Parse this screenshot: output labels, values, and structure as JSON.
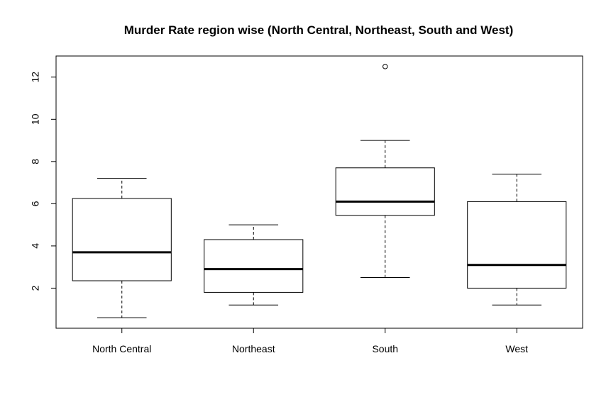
{
  "chart_data": {
    "type": "boxplot",
    "title": "Murder Rate region wise (North Central, Northeast, South and West)",
    "xlabel": "",
    "ylabel": "",
    "ylim": [
      0.1,
      13.0
    ],
    "yticks": [
      2,
      4,
      6,
      8,
      10,
      12
    ],
    "categories": [
      "North Central",
      "Northeast",
      "South",
      "West"
    ],
    "boxes": [
      {
        "category": "North Central",
        "whisker_low": 0.6,
        "q1": 2.35,
        "median": 3.7,
        "q3": 6.25,
        "whisker_high": 7.2,
        "outliers": []
      },
      {
        "category": "Northeast",
        "whisker_low": 1.2,
        "q1": 1.8,
        "median": 2.9,
        "q3": 4.3,
        "whisker_high": 5.0,
        "outliers": []
      },
      {
        "category": "South",
        "whisker_low": 2.5,
        "q1": 5.45,
        "median": 6.1,
        "q3": 7.7,
        "whisker_high": 9.0,
        "outliers": [
          12.5
        ]
      },
      {
        "category": "West",
        "whisker_low": 1.2,
        "q1": 2.0,
        "median": 3.1,
        "q3": 6.1,
        "whisker_high": 7.4,
        "outliers": []
      }
    ],
    "grid": false,
    "legend": "none"
  }
}
